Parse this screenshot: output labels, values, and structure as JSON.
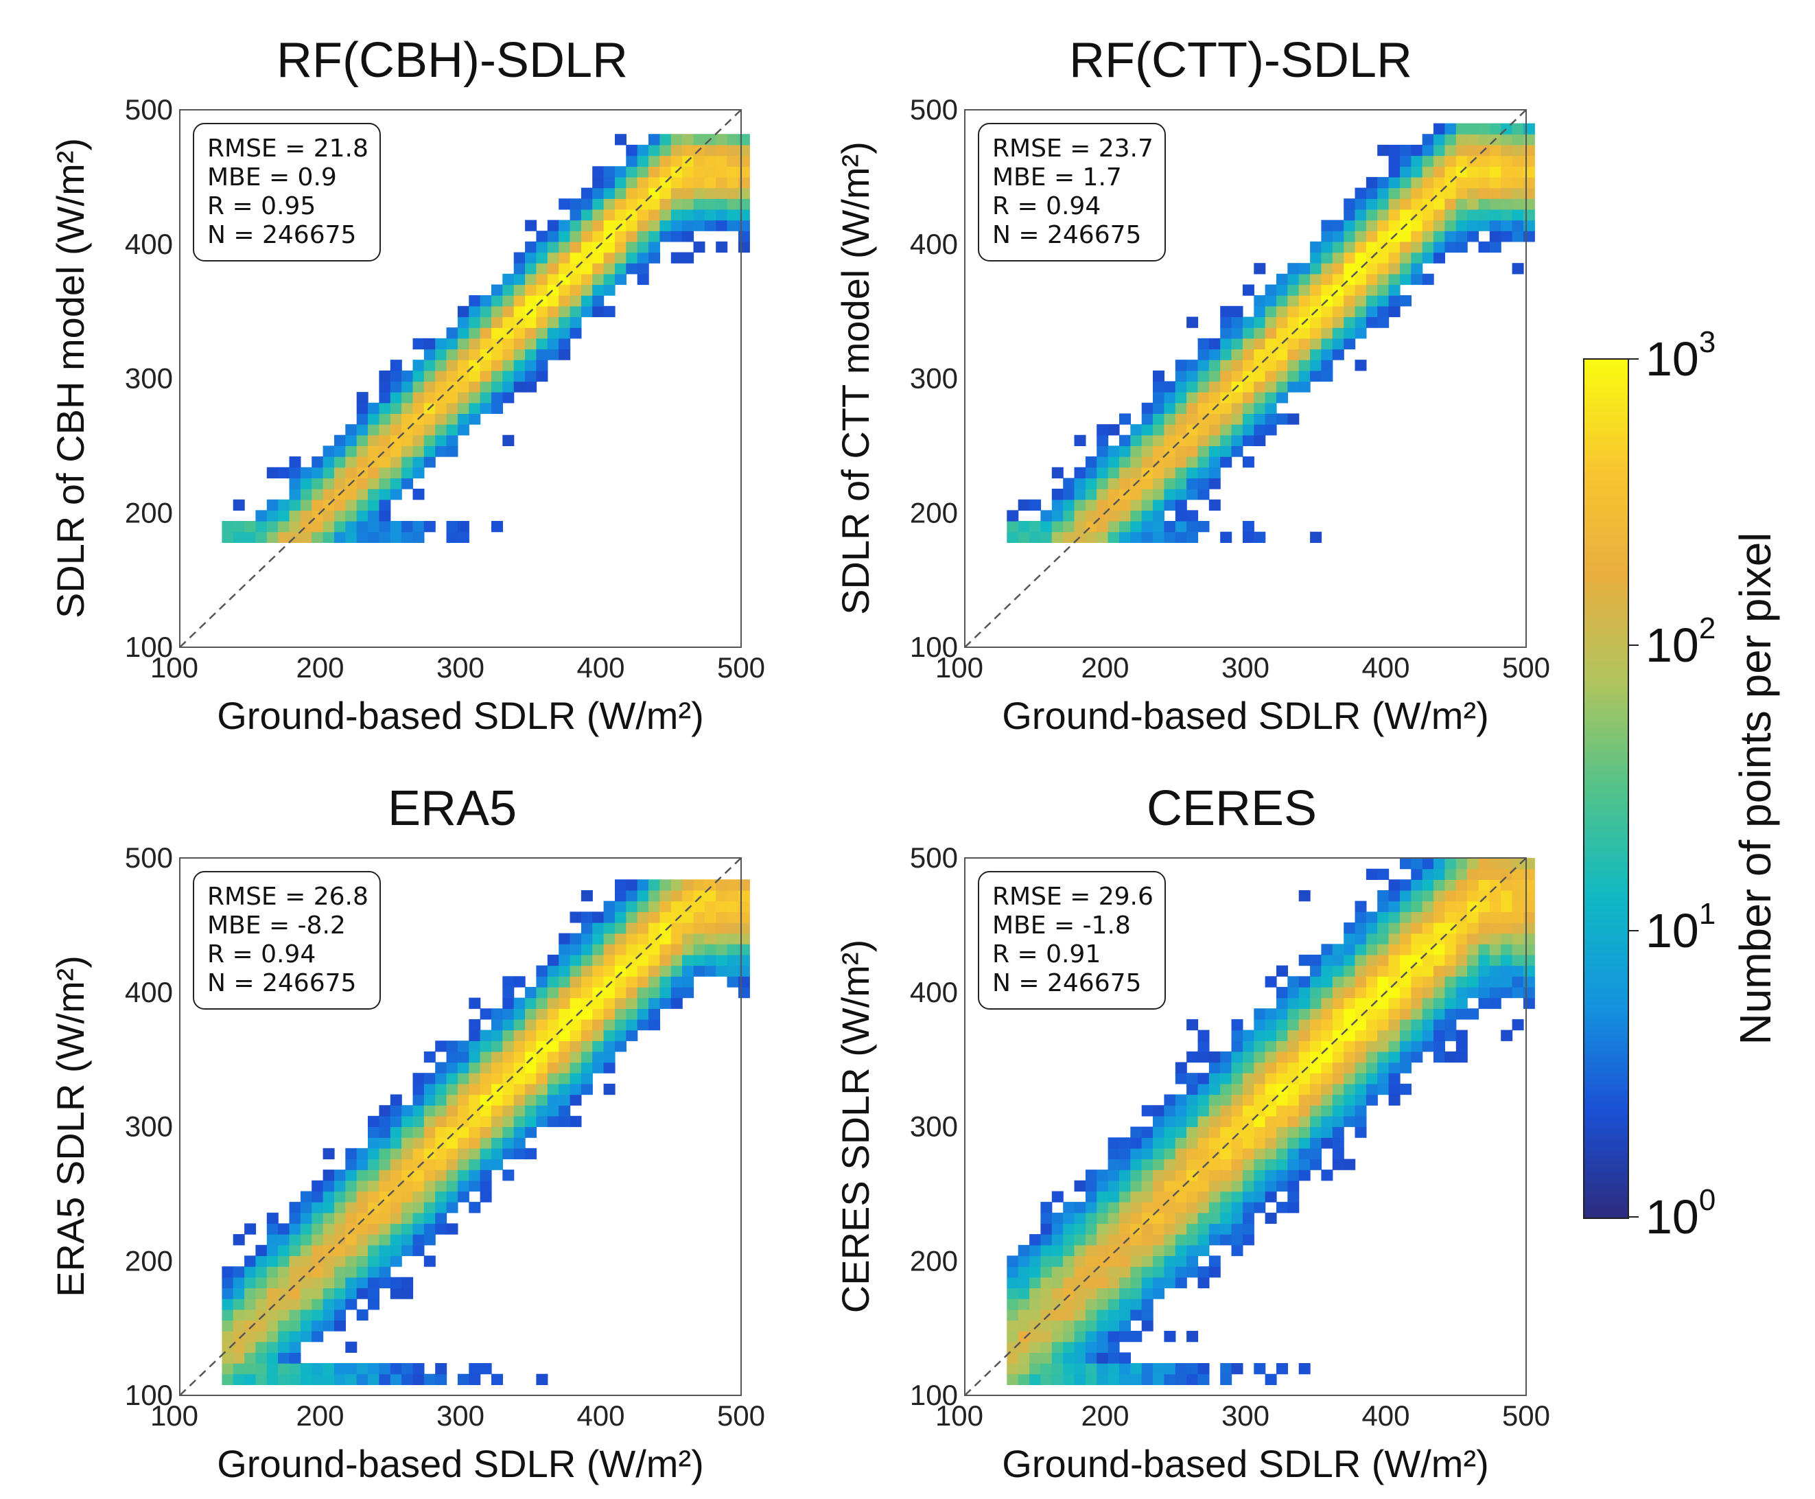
{
  "chart_data": {
    "type": "heatmap",
    "panels": [
      {
        "title": "RF(CBH)-SDLR",
        "xlabel": "Ground-based  SDLR (W/m²)",
        "ylabel": "SDLR of CBH model (W/m²)",
        "xlim": [
          100,
          500
        ],
        "ylim": [
          100,
          500
        ],
        "xticks": [
          "100",
          "200",
          "300",
          "400",
          "500"
        ],
        "yticks": [
          "100",
          "200",
          "300",
          "400",
          "500"
        ],
        "stats": [
          "RMSE = 21.8",
          "MBE = 0.9",
          "R = 0.95",
          "N = 246675"
        ],
        "reference_line": "1:1",
        "density": {
          "x_range": [
            130,
            500
          ],
          "y_range": [
            162,
            478
          ],
          "floor_y": 180,
          "ceiling_y": 455,
          "spread": 20
        }
      },
      {
        "title": "RF(CTT)-SDLR",
        "xlabel": "Ground-based  SDLR (W/m²)",
        "ylabel": "SDLR of CTT model (W/m²)",
        "xlim": [
          100,
          500
        ],
        "ylim": [
          100,
          500
        ],
        "xticks": [
          "100",
          "200",
          "300",
          "400",
          "500"
        ],
        "yticks": [
          "100",
          "200",
          "300",
          "400",
          "500"
        ],
        "stats": [
          "RMSE = 23.7",
          "MBE = 1.7",
          "R = 0.94",
          "N = 246675"
        ],
        "reference_line": "1:1",
        "density": {
          "x_range": [
            130,
            500
          ],
          "y_range": [
            178,
            490
          ],
          "floor_y": 182,
          "ceiling_y": 455,
          "spread": 22
        }
      },
      {
        "title": "ERA5",
        "xlabel": "Ground-based  SDLR (W/m²)",
        "ylabel": "ERA5 SDLR (W/m²)",
        "xlim": [
          100,
          500
        ],
        "ylim": [
          100,
          500
        ],
        "xticks": [
          "100",
          "200",
          "300",
          "400",
          "500"
        ],
        "yticks": [
          "100",
          "200",
          "300",
          "400",
          "500"
        ],
        "stats": [
          "RMSE = 26.8",
          "MBE = -8.2",
          "R = 0.94",
          "N = 246675"
        ],
        "reference_line": "1:1",
        "density": {
          "x_range": [
            130,
            500
          ],
          "y_range": [
            108,
            478
          ],
          "floor_y": 108,
          "ceiling_y": 465,
          "spread": 26
        }
      },
      {
        "title": "CERES",
        "xlabel": "Ground-based  SDLR (W/m²)",
        "ylabel": "CERES SDLR (W/m²)",
        "xlim": [
          100,
          500
        ],
        "ylim": [
          100,
          500
        ],
        "xticks": [
          "100",
          "200",
          "300",
          "400",
          "500"
        ],
        "yticks": [
          "100",
          "200",
          "300",
          "400",
          "500"
        ],
        "stats": [
          "RMSE = 29.6",
          "MBE = -1.8",
          "R = 0.91",
          "N = 246675"
        ],
        "reference_line": "1:1",
        "density": {
          "x_range": [
            130,
            500
          ],
          "y_range": [
            108,
            500
          ],
          "floor_y": 108,
          "ceiling_y": 470,
          "spread": 32
        }
      }
    ],
    "colorbar": {
      "label": "Number of points per pixel",
      "scale": "log",
      "range": [
        1,
        1000
      ],
      "ticks": [
        {
          "base": "10",
          "exp": "0",
          "value": 1
        },
        {
          "base": "10",
          "exp": "1",
          "value": 10
        },
        {
          "base": "10",
          "exp": "2",
          "value": 100
        },
        {
          "base": "10",
          "exp": "3",
          "value": 1000
        }
      ],
      "colormap": [
        "#2c2c7d",
        "#1b50d6",
        "#1494de",
        "#10b9c3",
        "#52c38a",
        "#b1c45d",
        "#e9ae3f",
        "#f8c82e",
        "#f9fb10"
      ]
    }
  }
}
